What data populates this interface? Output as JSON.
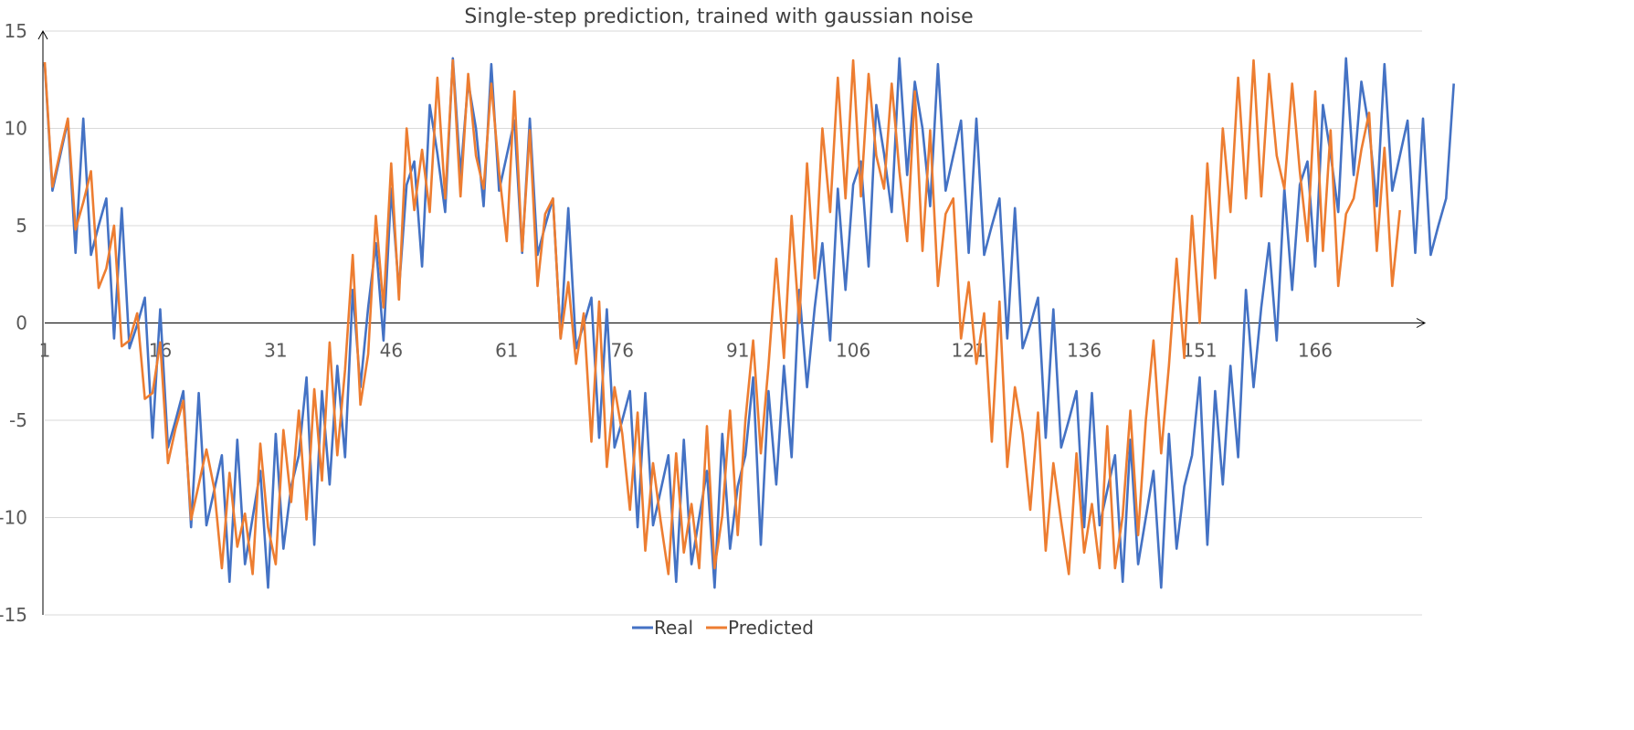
{
  "chart_data": {
    "type": "line",
    "title": "Single-step prediction, trained with gaussian noise",
    "xlabel": "",
    "ylabel": "",
    "ylim": [
      -15,
      15
    ],
    "yticks": [
      15,
      10,
      5,
      0,
      -5,
      -10,
      -15
    ],
    "xlim": [
      1,
      176
    ],
    "xticks": [
      1,
      16,
      31,
      46,
      61,
      76,
      91,
      106,
      121,
      136,
      151,
      166
    ],
    "grid": true,
    "legend_position": "bottom",
    "series": [
      {
        "name": "Real",
        "color": "#4472C4",
        "values": [
          13.3,
          6.8,
          8.6,
          10.4,
          3.6,
          10.5,
          3.5,
          5.0,
          6.4,
          -0.8,
          5.9,
          -1.3,
          -0.1,
          1.3,
          -5.9,
          0.7,
          -6.4,
          -5.0,
          -3.5,
          -10.5,
          -3.6,
          -10.4,
          -8.6,
          -6.8,
          -13.3,
          -6.0,
          -12.4,
          -10.0,
          -7.6,
          -13.6,
          -5.7,
          -11.6,
          -8.4,
          -6.8,
          -2.8,
          -11.4,
          -3.5,
          -8.3,
          -2.2,
          -6.9,
          1.7,
          -3.3,
          0.8,
          4.1,
          -0.9,
          6.9,
          1.7,
          7.1,
          8.3,
          2.9,
          11.2,
          8.7,
          5.7,
          13.6,
          7.6,
          12.4,
          10.0,
          6.0,
          13.3,
          6.8,
          8.6,
          10.4,
          3.6,
          10.5,
          3.5,
          5.0,
          6.4,
          -0.8,
          5.9,
          -1.3,
          -0.1,
          1.3,
          -5.9,
          0.7,
          -6.4,
          -5.0,
          -3.5,
          -10.5,
          -3.6,
          -10.4,
          -8.6,
          -6.8,
          -13.3,
          -6.0,
          -12.4,
          -10.0,
          -7.6,
          -13.6,
          -5.7,
          -11.6,
          -8.4,
          -6.8,
          -2.8,
          -11.4,
          -3.5,
          -8.3,
          -2.2,
          -6.9,
          1.7,
          -3.3,
          0.8,
          4.1,
          -0.9,
          6.9,
          1.7,
          7.1,
          8.3,
          2.9,
          11.2,
          8.7,
          5.7,
          13.6,
          7.6,
          12.4,
          10.0,
          6.0,
          13.3,
          6.8,
          8.6,
          10.4,
          3.6,
          10.5,
          3.5,
          5.0,
          6.4,
          -0.8,
          5.9,
          -1.3,
          -0.1,
          1.3,
          -5.9,
          0.7,
          -6.4,
          -5.0,
          -3.5,
          -10.5,
          -3.6,
          -10.4,
          -8.6,
          -6.8,
          -13.3,
          -6.0,
          -12.4,
          -10.0,
          -7.6,
          -13.6,
          -5.7,
          -11.6,
          -8.4,
          -6.8,
          -2.8,
          -11.4,
          -3.5,
          -8.3,
          -2.2,
          -6.9,
          1.7,
          -3.3,
          0.8,
          4.1,
          -0.9,
          6.9,
          1.7,
          7.1,
          8.3,
          2.9,
          11.2,
          8.7,
          5.7,
          13.6,
          7.6,
          12.4,
          10.0,
          6.0,
          13.3,
          6.8,
          8.6,
          10.4,
          3.6,
          10.5,
          3.5,
          5.0,
          6.4,
          12.3
        ]
      },
      {
        "name": "Predicted",
        "color": "#ED7D31",
        "values": [
          13.4,
          7.0,
          8.8,
          10.5,
          4.8,
          6.2,
          7.8,
          1.8,
          2.8,
          5.0,
          -1.2,
          -0.9,
          0.5,
          -3.9,
          -3.6,
          -1.0,
          -7.2,
          -5.4,
          -4.0,
          -10.1,
          -8.3,
          -6.5,
          -8.5,
          -12.6,
          -7.7,
          -11.5,
          -9.8,
          -12.9,
          -6.2,
          -10.5,
          -12.4,
          -5.5,
          -9.2,
          -4.5,
          -10.1,
          -3.4,
          -8.1,
          -1.0,
          -6.8,
          -2.4,
          3.5,
          -4.2,
          -1.6,
          5.5,
          0.8,
          8.2,
          1.2,
          10.0,
          5.8,
          8.9,
          5.7,
          12.6,
          6.4,
          13.5,
          6.5,
          12.8,
          8.6,
          6.9,
          12.3,
          7.8,
          4.2,
          11.9,
          3.7,
          9.9,
          1.9,
          5.6,
          6.4,
          -0.8,
          2.1,
          -2.1,
          0.5,
          -6.1,
          1.1,
          -7.4,
          -3.3,
          -5.7,
          -9.6,
          -4.6,
          -11.7,
          -7.2,
          -10.2,
          -12.9,
          -6.7,
          -11.8,
          -9.3,
          -12.6,
          -5.3,
          -12.6,
          -9.9,
          -4.5,
          -10.9,
          -5.0,
          -0.9,
          -6.7,
          -2.2,
          3.3,
          -1.8,
          5.5,
          0.0,
          8.2,
          2.3,
          10.0,
          5.7,
          12.6,
          6.4,
          13.5,
          6.5,
          12.8,
          8.6,
          6.9,
          12.3,
          7.8,
          4.2,
          11.9,
          3.7,
          9.9,
          1.9,
          5.6,
          6.4,
          -0.8,
          2.1,
          -2.1,
          0.5,
          -6.1,
          1.1,
          -7.4,
          -3.3,
          -5.7,
          -9.6,
          -4.6,
          -11.7,
          -7.2,
          -10.2,
          -12.9,
          -6.7,
          -11.8,
          -9.3,
          -12.6,
          -5.3,
          -12.6,
          -9.9,
          -4.5,
          -10.9,
          -5.0,
          -0.9,
          -6.7,
          -2.2,
          3.3,
          -1.8,
          5.5,
          0.0,
          8.2,
          2.3,
          10.0,
          5.7,
          12.6,
          6.4,
          13.5,
          6.5,
          12.8,
          8.6,
          6.9,
          12.3,
          7.8,
          4.2,
          11.9,
          3.7,
          9.9,
          1.9,
          5.6,
          6.4,
          8.9,
          10.8,
          3.7,
          9.0,
          1.9,
          5.8
        ]
      }
    ]
  }
}
